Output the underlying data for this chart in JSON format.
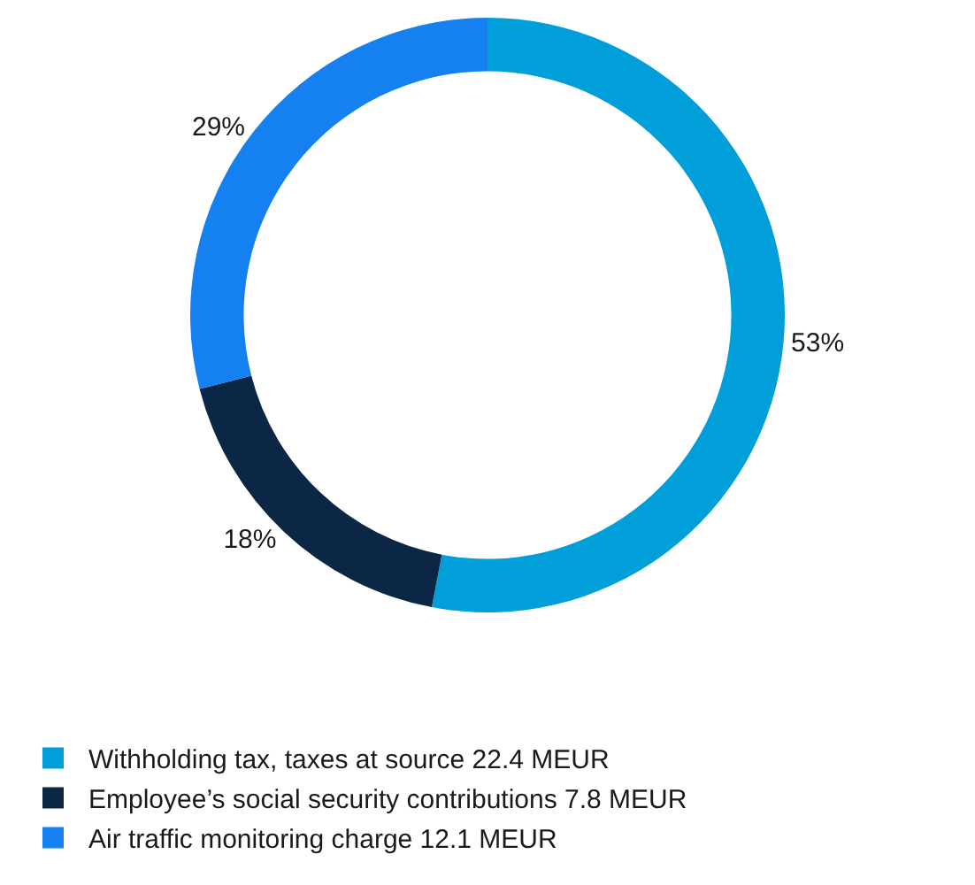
{
  "chart_data": {
    "type": "donut",
    "categories": [
      "Withholding tax, taxes at source 22.4 MEUR",
      "Employee’s social security contributions 7.8 MEUR",
      "Air traffic monitoring charge 12.1 MEUR"
    ],
    "values": [
      53,
      18,
      29
    ],
    "colors": [
      "#009fd9",
      "#0c2746",
      "#1580ef"
    ],
    "value_labels": [
      "53%",
      "18%",
      "29%"
    ],
    "legend": "bottom"
  }
}
